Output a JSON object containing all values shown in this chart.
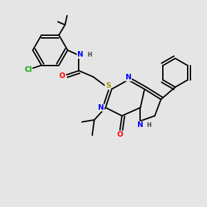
{
  "background_color": "#e5e5e5",
  "atom_colors": {
    "N": "#0000FF",
    "O": "#FF0000",
    "S": "#999900",
    "Cl": "#00AA00",
    "C": "#000000",
    "H": "#444444"
  },
  "bond_lw": 1.4,
  "font_size": 7.5
}
